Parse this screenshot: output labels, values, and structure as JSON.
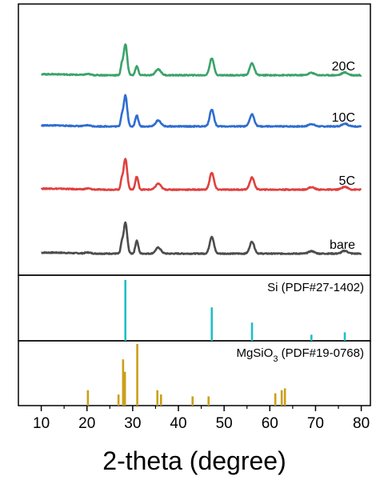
{
  "chart_data": {
    "type": "line",
    "xlabel": "2-theta (degree)",
    "xlim": [
      5,
      82
    ],
    "x_ticks": [
      10,
      20,
      30,
      40,
      50,
      60,
      70,
      80
    ],
    "grid": false,
    "series": [
      {
        "name": "bare",
        "color": "#4d4d4d",
        "order": 0,
        "peaks": [
          [
            20.2,
            0.05,
            0.8
          ],
          [
            27.6,
            0.45,
            0.35
          ],
          [
            28.4,
            1.55,
            0.55
          ],
          [
            30.9,
            0.65,
            0.45
          ],
          [
            35.6,
            0.3,
            0.8
          ],
          [
            47.3,
            0.85,
            0.65
          ],
          [
            56.1,
            0.6,
            0.7
          ],
          [
            69.1,
            0.12,
            0.9
          ],
          [
            76.4,
            0.14,
            0.9
          ]
        ]
      },
      {
        "name": "5C",
        "color": "#e0403f",
        "order": 1,
        "peaks": [
          [
            20.2,
            0.05,
            0.8
          ],
          [
            27.6,
            0.45,
            0.35
          ],
          [
            28.4,
            1.55,
            0.55
          ],
          [
            30.9,
            0.65,
            0.45
          ],
          [
            35.6,
            0.3,
            0.8
          ],
          [
            47.3,
            0.85,
            0.65
          ],
          [
            56.1,
            0.6,
            0.7
          ],
          [
            69.1,
            0.12,
            0.9
          ],
          [
            76.4,
            0.14,
            0.9
          ]
        ]
      },
      {
        "name": "10C",
        "color": "#2f6dd1",
        "order": 2,
        "peaks": [
          [
            20.2,
            0.05,
            0.8
          ],
          [
            27.6,
            0.45,
            0.35
          ],
          [
            28.4,
            1.55,
            0.55
          ],
          [
            30.9,
            0.55,
            0.45
          ],
          [
            35.6,
            0.3,
            0.8
          ],
          [
            47.3,
            0.85,
            0.65
          ],
          [
            56.1,
            0.6,
            0.7
          ],
          [
            69.1,
            0.12,
            0.9
          ],
          [
            76.4,
            0.14,
            0.9
          ]
        ]
      },
      {
        "name": "20C",
        "color": "#3aa36a",
        "order": 3,
        "peaks": [
          [
            20.2,
            0.05,
            0.8
          ],
          [
            27.6,
            0.45,
            0.35
          ],
          [
            28.4,
            1.55,
            0.55
          ],
          [
            30.9,
            0.45,
            0.45
          ],
          [
            35.6,
            0.3,
            0.8
          ],
          [
            47.3,
            0.85,
            0.65
          ],
          [
            56.1,
            0.6,
            0.7
          ],
          [
            69.1,
            0.12,
            0.9
          ],
          [
            76.4,
            0.14,
            0.9
          ]
        ]
      }
    ],
    "references": [
      {
        "name": "Si (PDF#27-1402)",
        "color": "#1fbfc6",
        "lines": [
          [
            28.4,
            100
          ],
          [
            47.3,
            55
          ],
          [
            56.1,
            30
          ],
          [
            69.1,
            10
          ],
          [
            76.4,
            14
          ]
        ]
      },
      {
        "name_main": "MgSiO",
        "name_sub": "3",
        "name_rest": " (PDF#19-0768)",
        "color": "#c9a01a",
        "lines": [
          [
            20.2,
            25
          ],
          [
            26.9,
            18
          ],
          [
            27.9,
            75
          ],
          [
            28.3,
            55
          ],
          [
            31.0,
            100
          ],
          [
            35.4,
            25
          ],
          [
            36.2,
            18
          ],
          [
            43.1,
            15
          ],
          [
            46.6,
            15
          ],
          [
            61.2,
            20
          ],
          [
            62.6,
            25
          ],
          [
            63.3,
            28
          ]
        ]
      }
    ]
  }
}
